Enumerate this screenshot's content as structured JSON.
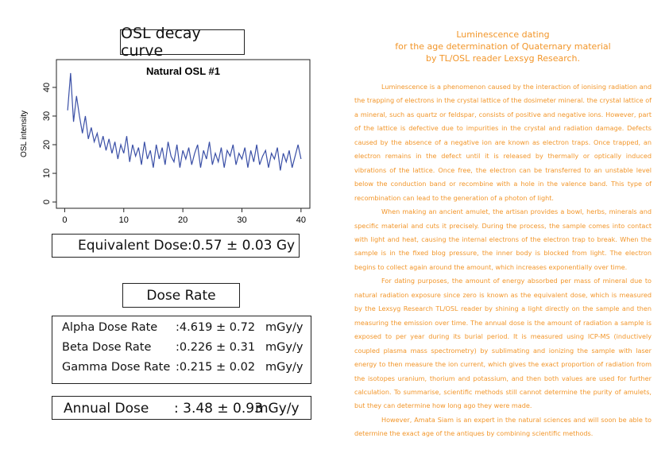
{
  "heading": "OSL decay curve",
  "chart_data": {
    "type": "line",
    "title": "Natural OSL #1",
    "ylabel": "OSL intensity",
    "x": [
      0.5,
      1,
      1.5,
      2,
      2.5,
      3,
      3.5,
      4,
      4.5,
      5,
      5.5,
      6,
      6.5,
      7,
      7.5,
      8,
      8.5,
      9,
      9.5,
      10,
      10.5,
      11,
      11.5,
      12,
      12.5,
      13,
      13.5,
      14,
      14.5,
      15,
      15.5,
      16,
      16.5,
      17,
      17.5,
      18,
      18.5,
      19,
      19.5,
      20,
      20.5,
      21,
      21.5,
      22,
      22.5,
      23,
      23.5,
      24,
      24.5,
      25,
      25.5,
      26,
      26.5,
      27,
      27.5,
      28,
      28.5,
      29,
      29.5,
      30,
      30.5,
      31,
      31.5,
      32,
      32.5,
      33,
      33.5,
      34,
      34.5,
      35,
      35.5,
      36,
      36.5,
      37,
      37.5,
      38,
      38.5,
      39,
      39.5,
      40
    ],
    "series": [
      {
        "name": "Natural OSL #1",
        "color": "#3a4fa6",
        "values": [
          32,
          45,
          28,
          37,
          30,
          24,
          30,
          22,
          26,
          21,
          24,
          19,
          23,
          18,
          22,
          17,
          21,
          15,
          20,
          17,
          23,
          14,
          20,
          16,
          19,
          13,
          21,
          15,
          18,
          12,
          20,
          15,
          19,
          13,
          21,
          16,
          14,
          20,
          12,
          18,
          15,
          19,
          13,
          17,
          20,
          12,
          18,
          15,
          21,
          13,
          17,
          14,
          19,
          12,
          18,
          16,
          20,
          13,
          17,
          15,
          19,
          12,
          18,
          14,
          20,
          13,
          16,
          18,
          12,
          17,
          15,
          19,
          11,
          17,
          14,
          18,
          12,
          16,
          20,
          15
        ]
      }
    ],
    "xlim": [
      -1.4,
      41.5
    ],
    "ylim": [
      -2.2,
      49.7
    ],
    "xticks": [
      0,
      10,
      20,
      30,
      40
    ],
    "yticks": [
      0,
      10,
      20,
      30,
      40
    ]
  },
  "equivalent_dose": {
    "label": "Equivalent Dose",
    "value": ":0.57 ± 0.03 Gy"
  },
  "dose_rate": {
    "title": "Dose Rate",
    "rows": [
      {
        "label": "Alpha Dose Rate",
        "value": ":4.619 ± 0.72",
        "unit": "mGy/y"
      },
      {
        "label": "Beta Dose Rate",
        "value": ":0.226 ± 0.31",
        "unit": "mGy/y"
      },
      {
        "label": "Gamma Dose Rate",
        "value": ":0.215 ± 0.02",
        "unit": "mGy/y"
      }
    ]
  },
  "annual_dose": {
    "label": "Annual Dose",
    "value": ": 3.48 ± 0.93",
    "unit": "mGy/y"
  },
  "article": {
    "title": [
      "Luminescence dating",
      "for the age determination of Quaternary material",
      "by TL/OSL reader Lexsyg Research."
    ],
    "paragraphs": [
      "Luminescence is a phenomenon caused by the interaction of ionising radiation and the trapping of electrons in the crystal lattice of the dosimeter mineral. the crystal lattice of a mineral, such as quartz or feldspar, consists of positive and negative ions. However, part of the lattice is defective due to impurities in the crystal and radiation damage. Defects caused by the absence of a negative ion are known as electron traps. Once trapped, an electron remains in the defect until it is released by thermally or optically induced vibrations of the lattice. Once free, the electron can be transferred to an unstable level below the conduction band or recombine with a hole in the valence band. This type of recombination can lead to the generation of a photon of light.",
      "When making an ancient amulet, the artisan provides a bowl, herbs, minerals and specific material and cuts it precisely. During the process, the sample comes into contact with light and heat, causing the internal electrons of the electron trap to break. When the sample is in the fixed blog pressure, the inner body is blocked from light. The electron begins to collect again around the amount, which increases exponentially over time.",
      "For dating purposes, the amount of energy absorbed per mass of mineral due to natural radiation exposure since zero is known as the equivalent dose, which is measured by the Lexsyg Research TL/OSL reader by shining a light directly on the sample and then measuring the emission over time. The annual dose is the amount of radiation a sample is exposed to per year during its burial period. It is measured using ICP-MS (inductively coupled plasma mass spectrometry) by sublimating and ionizing the sample with laser energy to then measure the ion current, which gives the exact proportion of radiation from the isotopes uranium, thorium and potassium, and then both values are used for further calculation. To summarise, scientific methods still cannot determine the purity of amulets, but they can determine how long ago they were made.",
      "However, Amata Siam is an expert in the natural sciences and will soon be able to determine the exact age of the antiques by combining scientific methods."
    ]
  }
}
